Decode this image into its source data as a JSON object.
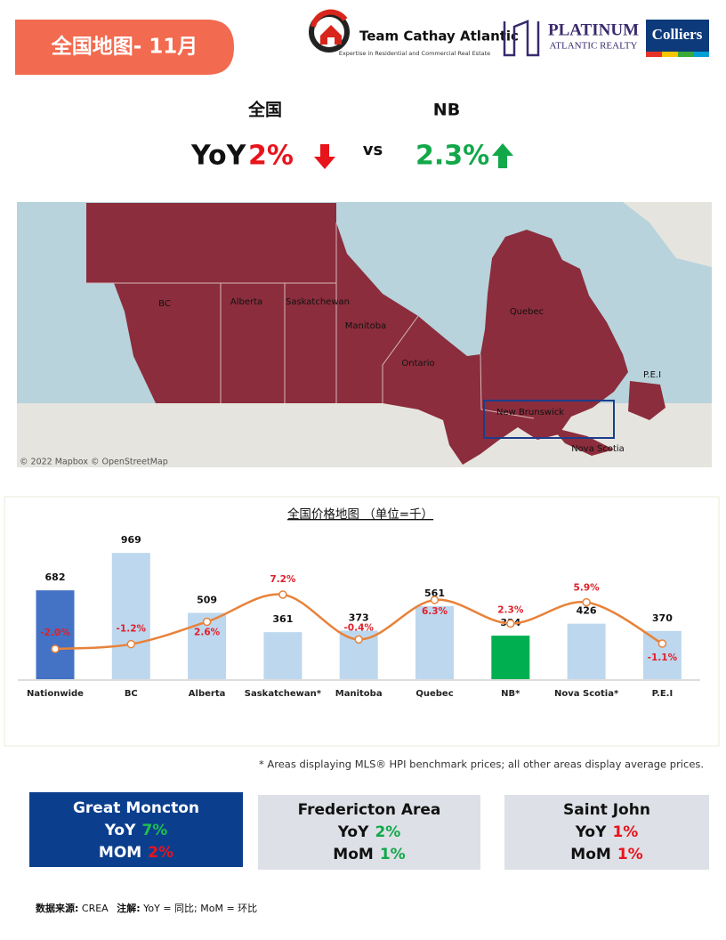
{
  "header": {
    "title": "全国地图- 11月",
    "brand1": "Team Cathay Atlantic",
    "brand1_tagline": "Expertise in Residential and Commercial Real Estate",
    "brand2": "PLATINUM",
    "brand2_sub": "ATLANTIC REALTY",
    "brand3": "Colliers"
  },
  "comparison": {
    "left_label": "全国",
    "right_label": "NB",
    "metric": "YoY",
    "left_value": "2%",
    "vs": "vs",
    "right_value": "2.3%"
  },
  "map": {
    "labels": [
      "BC",
      "Alberta",
      "Saskatchewan",
      "Manitoba",
      "Ontario",
      "Quebec",
      "P.E.I",
      "New Brunswick",
      "Nova Scotia"
    ],
    "attribution": "© 2022 Mapbox © OpenStreetMap"
  },
  "chart_data": {
    "type": "bar",
    "title": "全国价格地图 （单位=千）",
    "categories": [
      "Nationwide",
      "BC",
      "Alberta",
      "Saskatchewan*",
      "Manitoba",
      "Quebec",
      "NB*",
      "Nova Scotia*",
      "P.E.I"
    ],
    "ylim": [
      0,
      1100
    ],
    "y2lim": [
      -7.13,
      17.15
    ],
    "series": [
      {
        "type": "bar",
        "colors": [
          "#4472c4",
          "#bdd7ee",
          "#bdd7ee",
          "#bdd7ee",
          "#bdd7ee",
          "#bdd7ee",
          "#00b050",
          "#bdd7ee",
          "#bdd7ee"
        ],
        "values": [
          682,
          969,
          509,
          361,
          373,
          561,
          334,
          426,
          370
        ]
      },
      {
        "type": "line",
        "axis": "y2",
        "color": "#e8823a",
        "label_color": "#e0202a",
        "values": [
          -2.0,
          -1.2,
          2.6,
          7.2,
          -0.4,
          6.3,
          2.3,
          5.9,
          -1.1
        ],
        "value_labels": [
          "-2.0%",
          "-1.2%",
          "2.6%",
          "7.2%",
          "-0.4%",
          "6.3%",
          "2.3%",
          "5.9%",
          "-1.1%"
        ]
      }
    ]
  },
  "footnote": "* Areas displaying MLS® HPI benchmark prices; all other areas display average prices.",
  "cards": [
    {
      "name": "Great Moncton",
      "yoy_label": "YoY",
      "yoy": "7%",
      "yoy_color": "#1fbf4f",
      "mom_label": "MOM",
      "mom": "2%",
      "mom_color": "#e8141c"
    },
    {
      "name": "Fredericton Area",
      "yoy_label": "YoY",
      "yoy": "2%",
      "yoy_color": "#12a84a",
      "mom_label": "MoM",
      "mom": "1%",
      "mom_color": "#12a84a"
    },
    {
      "name": "Saint John",
      "yoy_label": "YoY",
      "yoy": "1%",
      "yoy_color": "#e8141c",
      "mom_label": "MoM",
      "mom": "1%",
      "mom_color": "#e8141c"
    }
  ],
  "footer": {
    "source_label": "数据来源:",
    "source": "CREA",
    "note_label": "注解:",
    "note": "YoY = 同比; MoM = 环比"
  }
}
